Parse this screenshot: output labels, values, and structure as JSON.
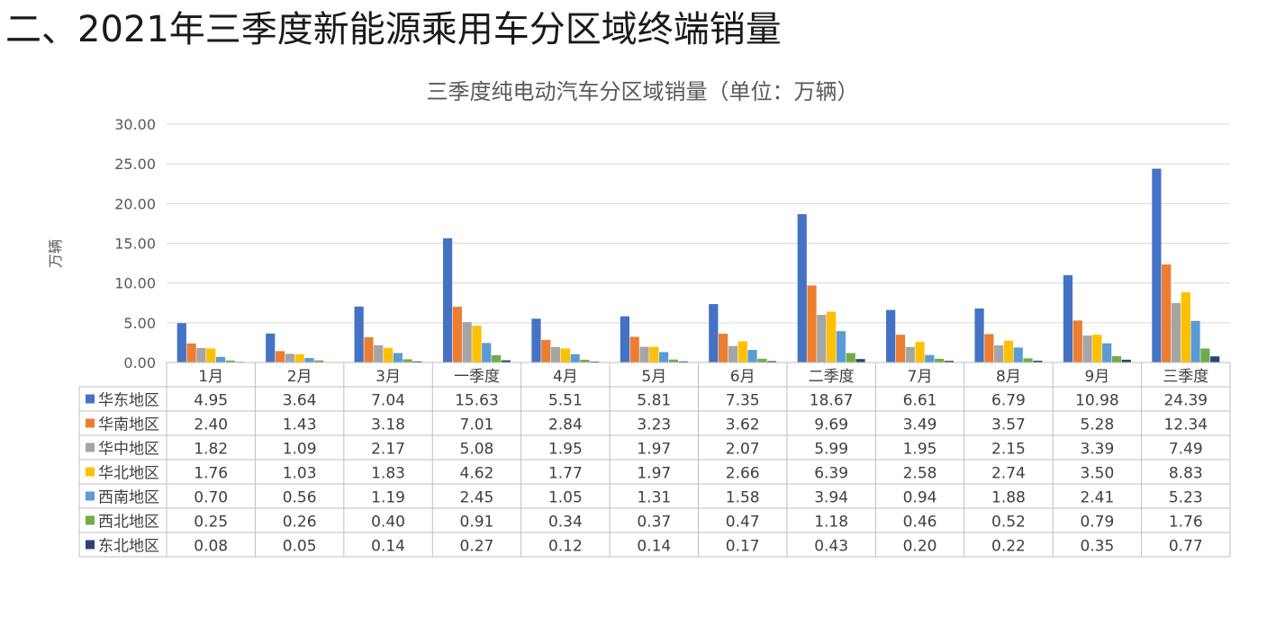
{
  "page": {
    "heading": "二、2021年三季度新能源乘用车分区域终端销量"
  },
  "chart_data": {
    "type": "bar",
    "title": "三季度纯电动汽车分区域销量（单位：万辆）",
    "xlabel": "",
    "ylabel": "万辆",
    "ylim": [
      0,
      30
    ],
    "yticks": [
      "0.00",
      "5.00",
      "10.00",
      "15.00",
      "20.00",
      "25.00",
      "30.00"
    ],
    "grid": true,
    "legend": "data-table-left",
    "categories": [
      "1月",
      "2月",
      "3月",
      "一季度",
      "4月",
      "5月",
      "6月",
      "二季度",
      "7月",
      "8月",
      "9月",
      "三季度"
    ],
    "series": [
      {
        "name": "华东地区",
        "color": "#4472c4",
        "values": [
          "4.95",
          "3.64",
          "7.04",
          "15.63",
          "5.51",
          "5.81",
          "7.35",
          "18.67",
          "6.61",
          "6.79",
          "10.98",
          "24.39"
        ]
      },
      {
        "name": "华南地区",
        "color": "#ed7d31",
        "values": [
          "2.40",
          "1.43",
          "3.18",
          "7.01",
          "2.84",
          "3.23",
          "3.62",
          "9.69",
          "3.49",
          "3.57",
          "5.28",
          "12.34"
        ]
      },
      {
        "name": "华中地区",
        "color": "#a5a5a5",
        "values": [
          "1.82",
          "1.09",
          "2.17",
          "5.08",
          "1.95",
          "1.97",
          "2.07",
          "5.99",
          "1.95",
          "2.15",
          "3.39",
          "7.49"
        ]
      },
      {
        "name": "华北地区",
        "color": "#ffc000",
        "values": [
          "1.76",
          "1.03",
          "1.83",
          "4.62",
          "1.77",
          "1.97",
          "2.66",
          "6.39",
          "2.58",
          "2.74",
          "3.50",
          "8.83"
        ]
      },
      {
        "name": "西南地区",
        "color": "#5b9bd5",
        "values": [
          "0.70",
          "0.56",
          "1.19",
          "2.45",
          "1.05",
          "1.31",
          "1.58",
          "3.94",
          "0.94",
          "1.88",
          "2.41",
          "5.23"
        ]
      },
      {
        "name": "西北地区",
        "color": "#70ad47",
        "values": [
          "0.25",
          "0.26",
          "0.40",
          "0.91",
          "0.34",
          "0.37",
          "0.47",
          "1.18",
          "0.46",
          "0.52",
          "0.79",
          "1.76"
        ]
      },
      {
        "name": "东北地区",
        "color": "#264478",
        "values": [
          "0.08",
          "0.05",
          "0.14",
          "0.27",
          "0.12",
          "0.14",
          "0.17",
          "0.43",
          "0.20",
          "0.22",
          "0.35",
          "0.77"
        ]
      }
    ]
  }
}
